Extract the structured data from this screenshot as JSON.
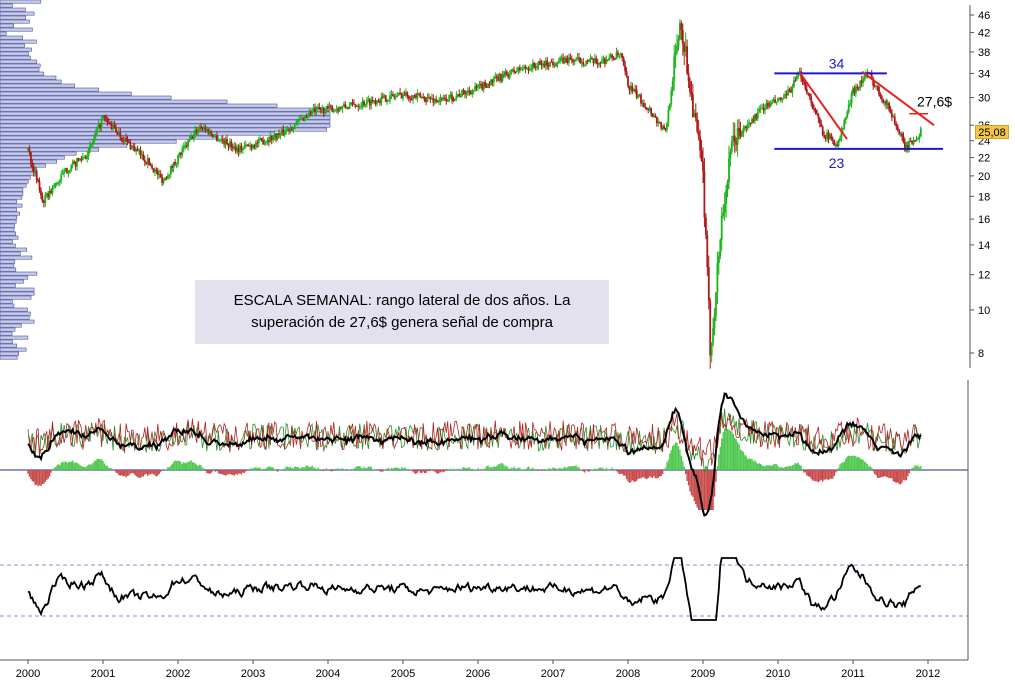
{
  "chart_data": [
    {
      "type": "candlestick",
      "title": "",
      "scale": "log",
      "ylim": [
        7.5,
        47
      ],
      "y_ticks": [
        46,
        42,
        38,
        34,
        30,
        26,
        24,
        22,
        20,
        18,
        16,
        14,
        12,
        10,
        8
      ],
      "x_ticks": [
        "2000",
        "2001",
        "2002",
        "2003",
        "2004",
        "2005",
        "2006",
        "2007",
        "2008",
        "2009",
        "2010",
        "2011",
        "2012"
      ],
      "grid": false,
      "price_series_anchors": [
        {
          "x": 2000.0,
          "y": 23.0
        },
        {
          "x": 2000.2,
          "y": 17.5
        },
        {
          "x": 2000.5,
          "y": 20.5
        },
        {
          "x": 2000.8,
          "y": 22.5
        },
        {
          "x": 2001.0,
          "y": 27.0
        },
        {
          "x": 2001.3,
          "y": 24.0
        },
        {
          "x": 2001.6,
          "y": 21.5
        },
        {
          "x": 2001.8,
          "y": 19.5
        },
        {
          "x": 2002.0,
          "y": 22.0
        },
        {
          "x": 2002.3,
          "y": 26.0
        },
        {
          "x": 2002.5,
          "y": 24.5
        },
        {
          "x": 2002.8,
          "y": 23.0
        },
        {
          "x": 2003.0,
          "y": 23.5
        },
        {
          "x": 2003.4,
          "y": 25.0
        },
        {
          "x": 2003.8,
          "y": 28.0
        },
        {
          "x": 2004.2,
          "y": 28.5
        },
        {
          "x": 2004.6,
          "y": 29.5
        },
        {
          "x": 2005.0,
          "y": 30.5
        },
        {
          "x": 2005.5,
          "y": 29.5
        },
        {
          "x": 2006.0,
          "y": 31.5
        },
        {
          "x": 2006.5,
          "y": 34.5
        },
        {
          "x": 2006.8,
          "y": 35.5
        },
        {
          "x": 2007.2,
          "y": 36.5
        },
        {
          "x": 2007.6,
          "y": 36.0
        },
        {
          "x": 2007.9,
          "y": 37.5
        },
        {
          "x": 2008.0,
          "y": 32.0
        },
        {
          "x": 2008.3,
          "y": 28.0
        },
        {
          "x": 2008.5,
          "y": 25.0
        },
        {
          "x": 2008.7,
          "y": 45.0
        },
        {
          "x": 2008.85,
          "y": 30.0
        },
        {
          "x": 2009.0,
          "y": 20.0
        },
        {
          "x": 2009.1,
          "y": 8.0
        },
        {
          "x": 2009.25,
          "y": 16.0
        },
        {
          "x": 2009.4,
          "y": 24.0
        },
        {
          "x": 2009.6,
          "y": 26.0
        },
        {
          "x": 2009.8,
          "y": 28.5
        },
        {
          "x": 2010.1,
          "y": 30.0
        },
        {
          "x": 2010.3,
          "y": 34.0
        },
        {
          "x": 2010.6,
          "y": 25.0
        },
        {
          "x": 2010.8,
          "y": 23.5
        },
        {
          "x": 2011.0,
          "y": 31.0
        },
        {
          "x": 2011.2,
          "y": 34.0
        },
        {
          "x": 2011.5,
          "y": 28.0
        },
        {
          "x": 2011.7,
          "y": 23.0
        },
        {
          "x": 2011.9,
          "y": 25.08
        }
      ],
      "last_value_label": "25,08",
      "annotations": {
        "horizontal_levels": [
          {
            "label": "34",
            "value": 34,
            "x_start": 2009.95,
            "x_end": 2011.45
          },
          {
            "label": "23",
            "value": 23,
            "x_start": 2009.95,
            "x_end": 2012.2
          }
        ],
        "trendlines": [
          {
            "x1": 2010.28,
            "y1": 34.3,
            "x2": 2010.92,
            "y2": 24.2
          },
          {
            "x1": 2011.12,
            "y1": 34.3,
            "x2": 2012.08,
            "y2": 26.0
          }
        ],
        "breakout_level": {
          "label": "27,6$",
          "value": 27.6
        },
        "note_lines": [
          "ESCALA SEMANAL: rango lateral de dos años. La",
          "superación de 27,6$ genera señal de compra"
        ]
      },
      "volume_profile": {
        "description_levels": [
          8,
          47
        ],
        "peak_price": 27.0
      }
    },
    {
      "type": "line",
      "panel": "momentum oscillator with histogram",
      "series": [
        {
          "color": "#000000"
        },
        {
          "color": "#2a8a2a"
        },
        {
          "color": "#b22222"
        }
      ],
      "histogram_colors": {
        "positive": "#4fc84f",
        "negative": "#c84a4a"
      }
    },
    {
      "type": "line",
      "panel": "oscillator with dashed bands",
      "series": [
        {
          "color": "#000000"
        }
      ]
    }
  ],
  "colors": {
    "candle_up": "#18b418",
    "candle_down": "#b01818",
    "profile_fill": "#c8cceb",
    "profile_stroke": "#4a4f9a",
    "level_line": "#1a1acc",
    "trendline": "#e52222",
    "axis": "#555555",
    "note_bg": "#e4e1ee",
    "last_badge": "#f3c64a"
  }
}
